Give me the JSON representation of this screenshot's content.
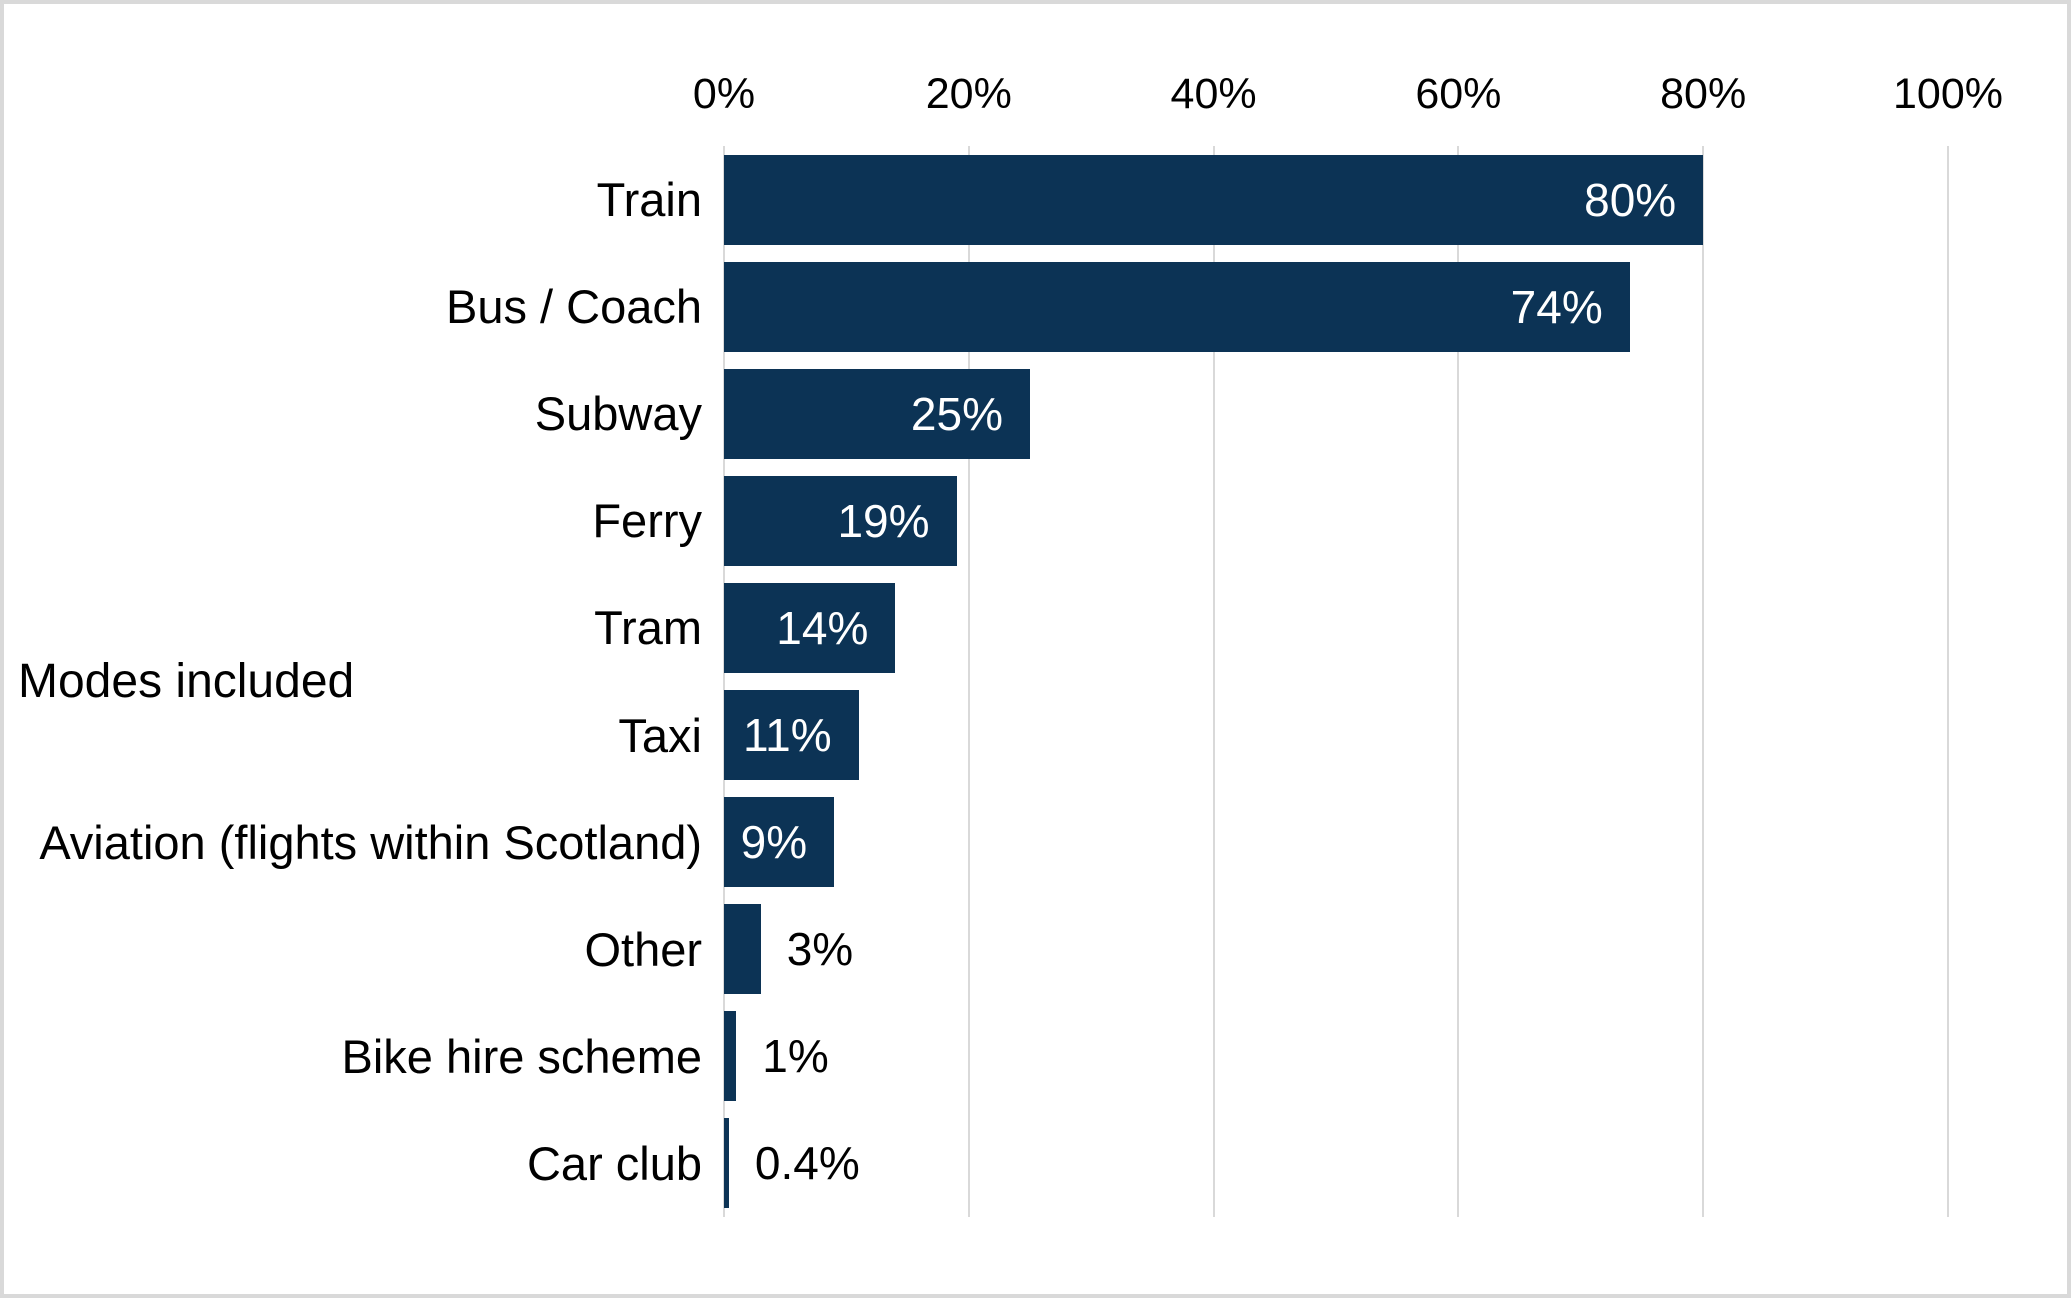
{
  "chart_data": {
    "type": "bar",
    "orientation": "horizontal",
    "title": "",
    "xlabel": "",
    "ylabel": "Modes included",
    "categories": [
      "Train",
      "Bus / Coach",
      "Subway",
      "Ferry",
      "Tram",
      "Taxi",
      "Aviation (flights within Scotland)",
      "Other",
      "Bike hire scheme",
      "Car club"
    ],
    "values": [
      80,
      74,
      25,
      19,
      14,
      11,
      9,
      3,
      1,
      0.4
    ],
    "value_labels": [
      "80%",
      "74%",
      "25%",
      "19%",
      "14%",
      "11%",
      "9%",
      "3%",
      "1%",
      "0.4%"
    ],
    "value_label_positions": [
      "inside",
      "inside",
      "inside",
      "inside",
      "inside",
      "inside",
      "inside",
      "outside",
      "outside",
      "outside"
    ],
    "xlim": [
      0,
      100
    ],
    "x_ticks": [
      0,
      20,
      40,
      60,
      80,
      100
    ],
    "x_tick_labels": [
      "0%",
      "20%",
      "40%",
      "60%",
      "80%",
      "100%"
    ],
    "grid": "vertical",
    "legend": false,
    "colors": {
      "bar": "#0c3355",
      "gridline": "#d9d9d9",
      "border": "#d9d9d9",
      "background": "#ffffff",
      "value_label_inside": "#ffffff",
      "value_label_outside": "#000000",
      "text": "#000000"
    }
  }
}
